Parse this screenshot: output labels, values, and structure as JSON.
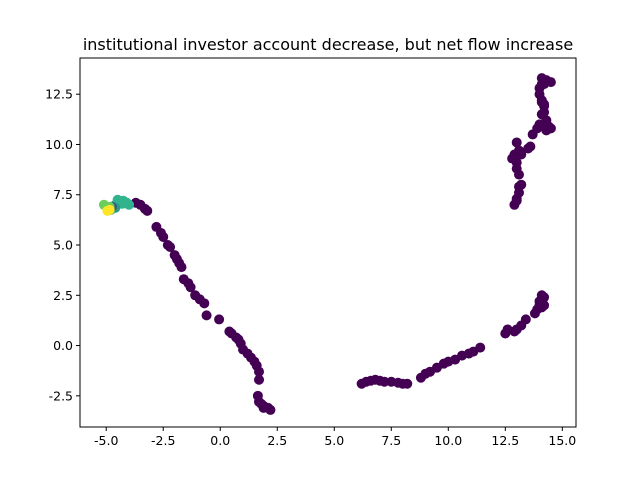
{
  "chart_data": {
    "type": "scatter",
    "title": "institutional investor account decrease, but net flow increase",
    "xlabel": "",
    "ylabel": "",
    "xlim": [
      -6.15,
      15.6
    ],
    "ylim": [
      -4.05,
      14.3
    ],
    "xticks": [
      -5.0,
      -2.5,
      0.0,
      2.5,
      5.0,
      7.5,
      10.0,
      12.5,
      15.0
    ],
    "yticks": [
      -2.5,
      0.0,
      2.5,
      5.0,
      7.5,
      10.0,
      12.5
    ],
    "grid": false,
    "legend": "none",
    "colors": {
      "purple": "#440154",
      "teal": "#31b48e",
      "green": "#6ccd5a",
      "yellow": "#fde725",
      "blue": "#3b528b",
      "seagreen": "#2a9d82"
    },
    "series": [
      {
        "color_key": "purple",
        "x": [
          -3.7,
          -3.5,
          -3.3,
          -3.2,
          -2.8,
          -2.6,
          -2.5,
          -2.3,
          -2.2,
          -2.0,
          -1.9,
          -1.8,
          -1.7,
          -1.6,
          -1.4,
          -1.3,
          -1.1,
          -0.9,
          -0.7,
          -0.6,
          -0.05,
          0.4,
          0.5,
          0.7,
          0.8,
          0.9,
          1.0,
          1.2,
          1.35,
          1.5,
          1.6,
          1.7,
          1.7,
          1.65,
          1.7,
          1.8,
          1.9,
          2.1,
          2.2,
          1.9
        ],
        "y": [
          7.1,
          7.0,
          6.8,
          6.7,
          5.9,
          5.6,
          5.4,
          5.0,
          4.9,
          4.5,
          4.3,
          4.1,
          3.9,
          3.3,
          3.1,
          2.9,
          2.5,
          2.3,
          2.1,
          1.5,
          1.3,
          0.7,
          0.6,
          0.4,
          0.3,
          0.1,
          -0.2,
          -0.4,
          -0.6,
          -0.8,
          -1.0,
          -1.3,
          -1.7,
          -2.5,
          -2.8,
          -2.9,
          -3.0,
          -3.1,
          -3.2,
          -3.1
        ]
      },
      {
        "color_key": "purple",
        "x": [
          6.2,
          6.4,
          6.6,
          6.8,
          7.0,
          7.2,
          7.5,
          7.8,
          8.0,
          8.2,
          8.8,
          9.0,
          9.2,
          9.5,
          9.8,
          10.0,
          10.3,
          10.6,
          10.9,
          11.1,
          11.4,
          12.5,
          12.6,
          12.9,
          13.0,
          13.2,
          13.4,
          13.8,
          13.9,
          14.0,
          14.0,
          14.1,
          14.1,
          14.2,
          14.2,
          14.1
        ],
        "y": [
          -1.9,
          -1.8,
          -1.75,
          -1.7,
          -1.75,
          -1.8,
          -1.8,
          -1.85,
          -1.9,
          -1.9,
          -1.6,
          -1.4,
          -1.3,
          -1.1,
          -0.9,
          -0.8,
          -0.7,
          -0.5,
          -0.4,
          -0.3,
          -0.1,
          0.6,
          0.8,
          0.7,
          0.8,
          1.0,
          1.3,
          1.6,
          1.8,
          2.0,
          2.2,
          2.3,
          2.5,
          2.4,
          2.0,
          1.9
        ]
      },
      {
        "color_key": "purple",
        "x": [
          12.8,
          12.9,
          13.0,
          13.0,
          13.1,
          13.2,
          13.1,
          13.0,
          12.9,
          13.0,
          13.1,
          13.2,
          13.1,
          13.0,
          13.5,
          13.6,
          13.7,
          13.9,
          14.0,
          14.1,
          14.2,
          14.3,
          14.4,
          14.5,
          14.2,
          14.1,
          14.0,
          14.1,
          14.2,
          14.3,
          14.1,
          14.2,
          14.0,
          14.1,
          14.2,
          14.3,
          14.5
        ],
        "y": [
          9.3,
          9.5,
          9.1,
          8.8,
          8.5,
          8.0,
          7.6,
          7.3,
          7.0,
          7.2,
          7.9,
          9.5,
          9.7,
          10.1,
          9.8,
          9.9,
          10.5,
          10.8,
          11.0,
          11.5,
          11.6,
          10.7,
          10.9,
          10.8,
          12.0,
          12.2,
          12.8,
          13.0,
          13.1,
          13.2,
          13.3,
          13.0,
          12.5,
          12.1,
          11.9,
          11.2,
          13.1
        ]
      },
      {
        "color_key": "teal",
        "x": [
          -4.6,
          -4.4,
          -4.25,
          -4.1,
          -4.5,
          -4.3,
          -4.0,
          -4.7
        ],
        "y": [
          7.0,
          7.15,
          7.2,
          7.1,
          7.25,
          7.05,
          7.0,
          6.9
        ]
      },
      {
        "color_key": "seagreen",
        "x": [
          -4.8,
          -4.6
        ],
        "y": [
          6.75,
          6.85
        ]
      },
      {
        "color_key": "blue",
        "x": [
          -4.75
        ],
        "y": [
          6.9
        ]
      },
      {
        "color_key": "green",
        "x": [
          -5.1,
          -4.95,
          -4.85
        ],
        "y": [
          7.0,
          6.8,
          6.9
        ]
      },
      {
        "color_key": "yellow",
        "x": [
          -4.95,
          -4.85
        ],
        "y": [
          6.7,
          6.75
        ]
      }
    ]
  }
}
